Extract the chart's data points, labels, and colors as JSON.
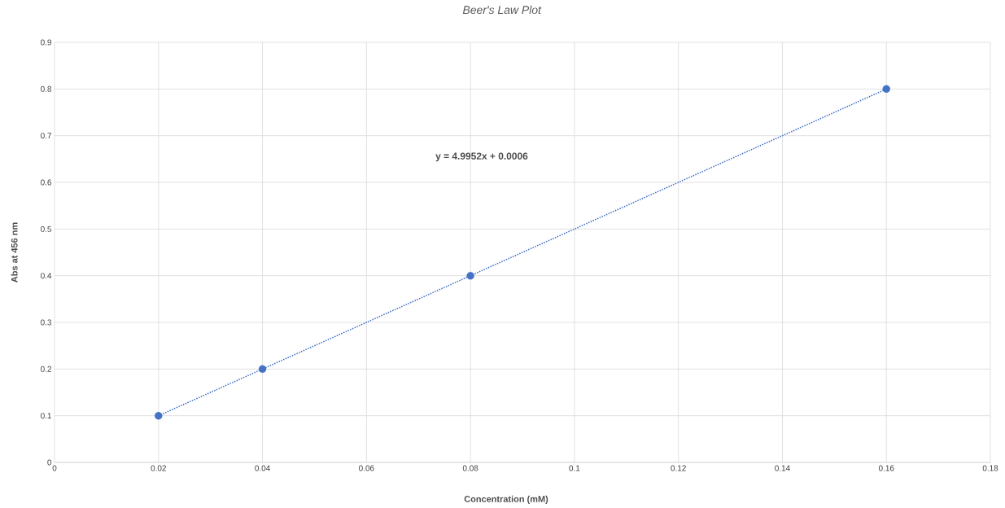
{
  "chart_data": {
    "type": "scatter",
    "title": "Beer's Law Plot",
    "xlabel": "Concentration (mM)",
    "ylabel": "Abs at 456 nm",
    "xlim": [
      0,
      0.18
    ],
    "xticks": [
      0,
      0.02,
      0.04,
      0.06,
      0.08,
      0.1,
      0.12,
      0.14,
      0.16,
      0.18
    ],
    "ylim": [
      0,
      0.9
    ],
    "yticks": [
      0,
      0.1,
      0.2,
      0.3,
      0.4,
      0.5,
      0.6,
      0.7,
      0.8,
      0.9
    ],
    "grid": true,
    "series": [
      {
        "color": "#4472c4",
        "marker": "circle",
        "x": [
          0.02,
          0.04,
          0.08,
          0.16
        ],
        "values": [
          0.1,
          0.2,
          0.4,
          0.8
        ]
      },
      {
        "type": "line",
        "color": "#4472c4",
        "line_style": "dotted",
        "x": [
          0.02,
          0.16
        ],
        "values": [
          0.1,
          0.8
        ]
      }
    ],
    "annotations": [
      "y = 4.9952x + 0.0006"
    ]
  }
}
